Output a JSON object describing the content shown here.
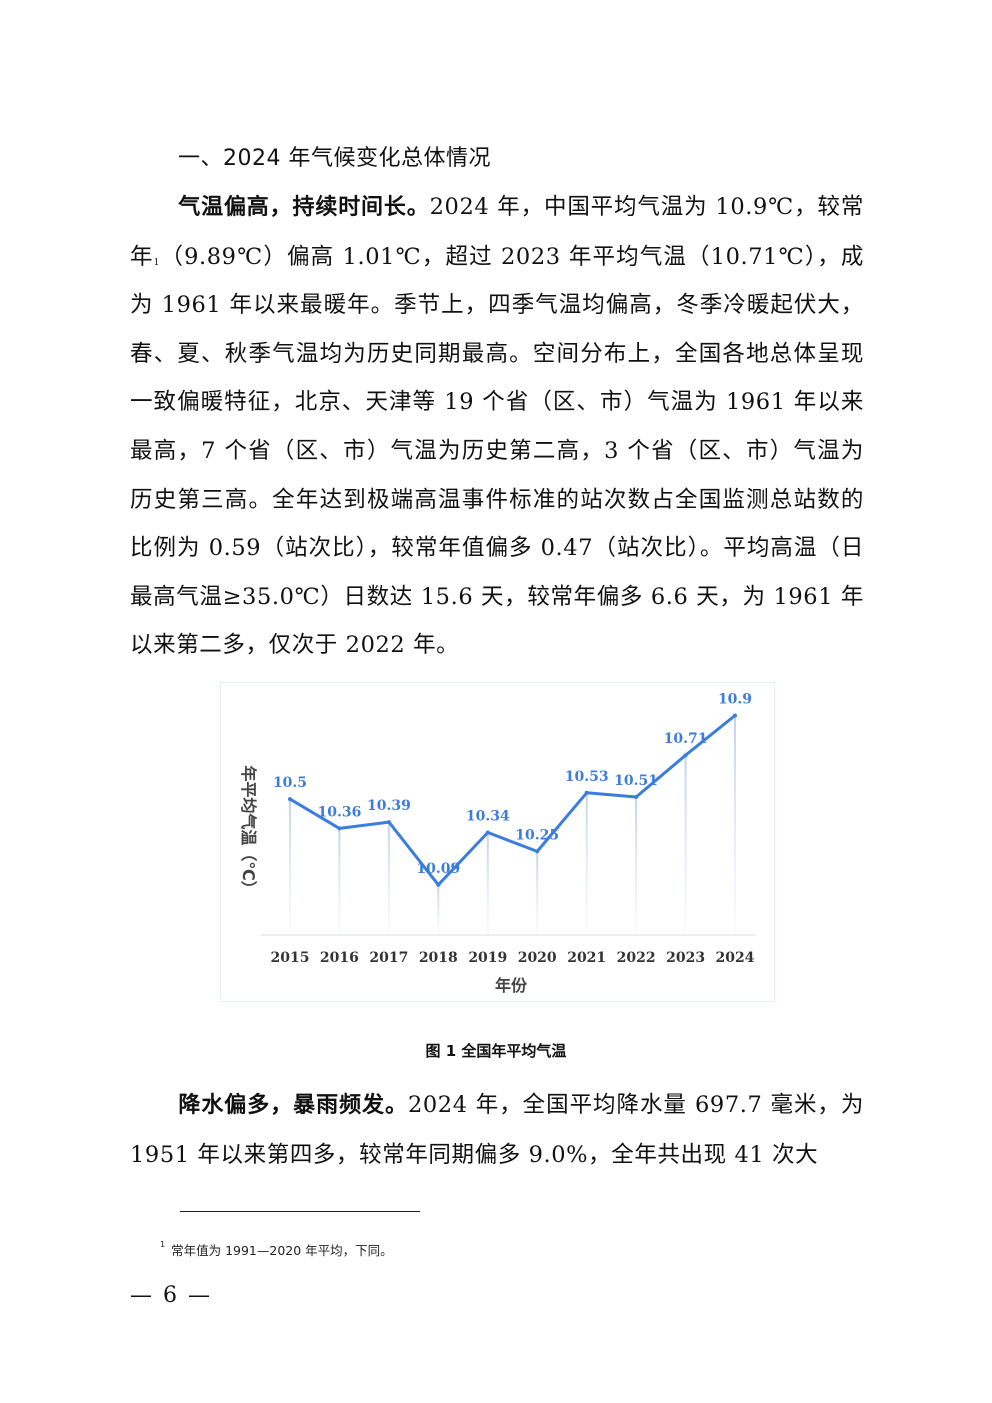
{
  "heading": "一、2024 年气候变化总体情况",
  "para1": {
    "lead": "气温偏高，持续时间长。",
    "text_before_fn": "2024 年，中国平均气温为 10.9℃，较常年",
    "fn_marker": "1",
    "text_after_fn": "（9.89℃）偏高 1.01℃，超过 2023 年平均气温（10.71℃），成为 1961 年以来最暖年。季节上，四季气温均偏高，冬季冷暖起伏大，春、夏、秋季气温均为历史同期最高。空间分布上，全国各地总体呈现一致偏暖特征，北京、天津等 19 个省（区、市）气温为 1961 年以来最高，7 个省（区、市）气温为历史第二高，3 个省（区、市）气温为历史第三高。全年达到极端高温事件标准的站次数占全国监测总站数的比例为 0.59（站次比），较常年值偏多 0.47（站次比）。平均高温（日最高气温≥35.0℃）日数达 15.6 天，较常年偏多 6.6 天，为 1961 年以来第二多，仅次于 2022 年。"
  },
  "chart_data": {
    "type": "line",
    "categories": [
      "2015",
      "2016",
      "2017",
      "2018",
      "2019",
      "2020",
      "2021",
      "2022",
      "2023",
      "2024"
    ],
    "values": [
      10.5,
      10.36,
      10.39,
      10.09,
      10.34,
      10.25,
      10.53,
      10.51,
      10.71,
      10.9
    ],
    "data_labels": [
      "10.5",
      "10.36",
      "10.39",
      "10.09",
      "10.34",
      "10.25",
      "10.53",
      "10.51",
      "10.71",
      "10.9"
    ],
    "xlabel": "年份",
    "ylabel": "年平均气温（℃）",
    "ylim": [
      9.85,
      10.95
    ],
    "line_color": "#3b7ddd",
    "label_color": "#3b7ddd",
    "grid": false
  },
  "figure_caption": "图 1  全国年平均气温",
  "para2": {
    "lead": "降水偏多，暴雨频发。",
    "text": "2024 年，全国平均降水量 697.7 毫米，为 1951 年以来第四多，较常年同期偏多 9.0%，全年共出现 41 次大"
  },
  "footnote": {
    "marker": "1",
    "text": "常年值为 1991—2020 年平均，下同。"
  },
  "page_number": "— 6 —"
}
